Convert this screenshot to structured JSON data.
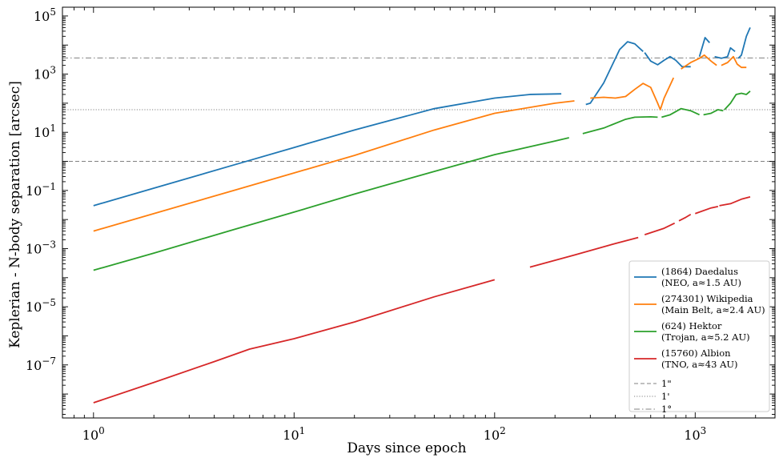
{
  "chart_data": {
    "type": "line",
    "title": "",
    "xlabel": "Days since epoch",
    "ylabel": "Keplerian - N-body separation [arcsec]",
    "xscale": "log",
    "yscale": "log",
    "xlim": [
      0.7,
      2500
    ],
    "ylim": [
      1.5e-09,
      200000.0
    ],
    "x_ticks": [
      {
        "value": 1,
        "base": "10",
        "exp": "0"
      },
      {
        "value": 10,
        "base": "10",
        "exp": "1"
      },
      {
        "value": 100,
        "base": "10",
        "exp": "2"
      },
      {
        "value": 1000,
        "base": "10",
        "exp": "3"
      }
    ],
    "y_ticks": [
      {
        "value": 1e-07,
        "base": "10",
        "exp": "−7"
      },
      {
        "value": 1e-05,
        "base": "10",
        "exp": "−5"
      },
      {
        "value": 0.001,
        "base": "10",
        "exp": "−3"
      },
      {
        "value": 0.1,
        "base": "10",
        "exp": "−1"
      },
      {
        "value": 10,
        "base": "10",
        "exp": "1"
      },
      {
        "value": 1000,
        "base": "10",
        "exp": "3"
      },
      {
        "value": 100000,
        "base": "10",
        "exp": "5"
      }
    ],
    "grid": false,
    "legend_position": "lower-right",
    "reference_lines": [
      {
        "label": "1\"",
        "value": 1,
        "style": "dashed",
        "color": "#808080"
      },
      {
        "label": "1'",
        "value": 60,
        "style": "dotted",
        "color": "#808080"
      },
      {
        "label": "1°",
        "value": 3600,
        "style": "dashdot",
        "color": "#808080"
      }
    ],
    "series": [
      {
        "name": "(1864) Daedalus",
        "name2": "(NEO, a≈1.5 AU)",
        "color": "#1f77b4",
        "segments": [
          [
            [
              1,
              0.03
            ],
            [
              2,
              0.12
            ],
            [
              5,
              0.75
            ],
            [
              10,
              3
            ],
            [
              20,
              12
            ],
            [
              50,
              65
            ],
            [
              100,
              150
            ],
            [
              150,
              200
            ],
            [
              215,
              210
            ]
          ],
          [
            [
              285,
              90
            ],
            [
              300,
              100
            ],
            [
              350,
              500
            ],
            [
              420,
              7000
            ],
            [
              460,
              13000
            ],
            [
              500,
              11000
            ],
            [
              550,
              6000
            ]
          ],
          [
            [
              560,
              5500
            ],
            [
              600,
              2800
            ],
            [
              650,
              2100
            ],
            [
              700,
              3000
            ],
            [
              750,
              4000
            ],
            [
              800,
              3000
            ],
            [
              860,
              1800
            ],
            [
              950,
              1800
            ]
          ],
          [
            [
              1050,
              4000
            ],
            [
              1120,
              18000
            ],
            [
              1180,
              12000
            ]
          ],
          [
            [
              1250,
              4000
            ],
            [
              1350,
              3500
            ],
            [
              1450,
              4000
            ],
            [
              1500,
              8000
            ],
            [
              1580,
              6000
            ]
          ],
          [
            [
              1640,
              3500
            ],
            [
              1700,
              4500
            ],
            [
              1800,
              20000
            ],
            [
              1880,
              40000
            ]
          ]
        ]
      },
      {
        "name": "(274301) Wikipedia",
        "name2": "(Main Belt, a≈2.4 AU)",
        "color": "#ff7f0e",
        "segments": [
          [
            [
              1,
              0.004
            ],
            [
              2,
              0.016
            ],
            [
              5,
              0.1
            ],
            [
              10,
              0.4
            ],
            [
              20,
              1.6
            ],
            [
              50,
              12
            ],
            [
              100,
              45
            ],
            [
              200,
              100
            ],
            [
              250,
              120
            ]
          ],
          [
            [
              300,
              150
            ],
            [
              350,
              160
            ],
            [
              400,
              150
            ],
            [
              450,
              170
            ],
            [
              500,
              300
            ],
            [
              550,
              480
            ],
            [
              600,
              350
            ],
            [
              650,
              100
            ],
            [
              670,
              60
            ],
            [
              700,
              150
            ],
            [
              780,
              750
            ]
          ],
          [
            [
              850,
              1500
            ],
            [
              950,
              2500
            ],
            [
              1050,
              3500
            ],
            [
              1110,
              4500
            ],
            [
              1200,
              2800
            ],
            [
              1280,
              2000
            ]
          ],
          [
            [
              1350,
              2000
            ],
            [
              1450,
              2500
            ],
            [
              1550,
              4000
            ],
            [
              1620,
              2200
            ],
            [
              1700,
              1700
            ],
            [
              1800,
              1700
            ]
          ]
        ]
      },
      {
        "name": "(624) Hektor",
        "name2": "(Trojan, a≈5.2 AU)",
        "color": "#2ca02c",
        "segments": [
          [
            [
              1,
              0.00018
            ],
            [
              2,
              0.0007
            ],
            [
              5,
              0.0045
            ],
            [
              10,
              0.018
            ],
            [
              20,
              0.075
            ],
            [
              50,
              0.45
            ],
            [
              100,
              1.7
            ],
            [
              200,
              5
            ],
            [
              235,
              6.5
            ]
          ],
          [
            [
              275,
              9
            ],
            [
              350,
              14
            ],
            [
              450,
              28
            ],
            [
              500,
              33
            ],
            [
              600,
              34
            ],
            [
              650,
              33
            ]
          ],
          [
            [
              680,
              33
            ],
            [
              750,
              40
            ],
            [
              850,
              65
            ],
            [
              950,
              55
            ],
            [
              1050,
              40
            ]
          ],
          [
            [
              1100,
              40
            ],
            [
              1200,
              45
            ],
            [
              1300,
              60
            ],
            [
              1380,
              55
            ]
          ],
          [
            [
              1400,
              60
            ],
            [
              1500,
              100
            ],
            [
              1600,
              200
            ],
            [
              1700,
              220
            ],
            [
              1800,
              200
            ],
            [
              1880,
              260
            ]
          ]
        ]
      },
      {
        "name": "(15760) Albion",
        "name2": "(TNO, a≈43 AU)",
        "color": "#d62728",
        "segments": [
          [
            [
              1,
              5e-09
            ],
            [
              2,
              2.5e-08
            ],
            [
              4,
              1.3e-07
            ],
            [
              6,
              3.5e-07
            ],
            [
              10,
              8e-07
            ],
            [
              20,
              3e-06
            ],
            [
              50,
              2.2e-05
            ],
            [
              80,
              5.5e-05
            ],
            [
              100,
              8.5e-05
            ]
          ],
          [
            [
              150,
              0.00023
            ],
            [
              250,
              0.0006
            ],
            [
              400,
              0.0015
            ],
            [
              520,
              0.0024
            ]
          ],
          [
            [
              560,
              0.003
            ],
            [
              700,
              0.005
            ],
            [
              790,
              0.0075
            ]
          ],
          [
            [
              830,
              0.009
            ],
            [
              900,
              0.012
            ],
            [
              950,
              0.015
            ]
          ],
          [
            [
              1000,
              0.016
            ],
            [
              1200,
              0.025
            ],
            [
              1300,
              0.028
            ]
          ],
          [
            [
              1320,
              0.03
            ],
            [
              1500,
              0.035
            ],
            [
              1700,
              0.05
            ],
            [
              1880,
              0.06
            ]
          ]
        ]
      }
    ]
  }
}
